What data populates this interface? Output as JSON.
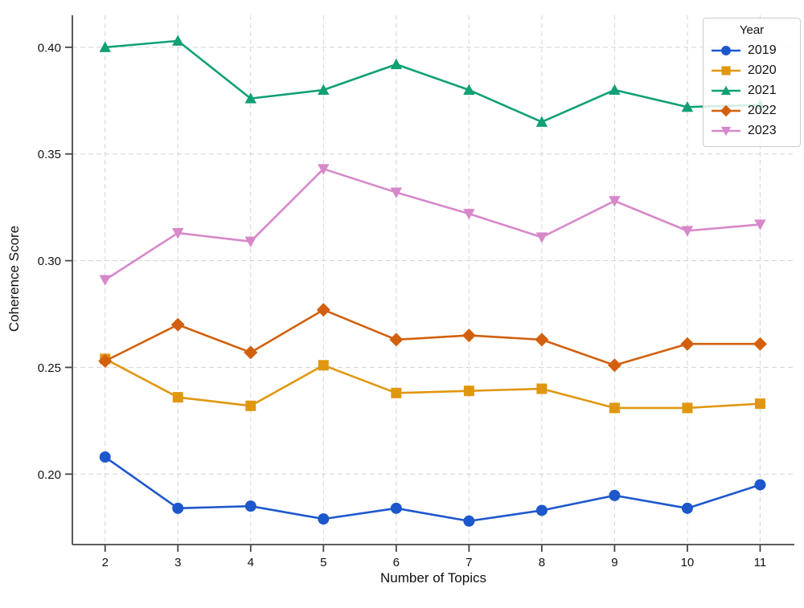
{
  "figure": {
    "background": "#ffffff",
    "grid_color": "#d8d8d8",
    "spine_color": "#454545",
    "text_color": "#111111"
  },
  "chart_data": {
    "type": "line",
    "title": "",
    "xlabel": "Number of Topics",
    "ylabel": "Coherence Score",
    "x": [
      2,
      3,
      4,
      5,
      6,
      7,
      8,
      9,
      10,
      11
    ],
    "xtick_labels": [
      "2",
      "3",
      "4",
      "5",
      "6",
      "7",
      "8",
      "9",
      "10",
      "11"
    ],
    "yticks": [
      {
        "value": 0.2,
        "label": "0.20"
      },
      {
        "value": 0.25,
        "label": "0.25"
      },
      {
        "value": 0.3,
        "label": "0.30"
      },
      {
        "value": 0.35,
        "label": "0.35"
      },
      {
        "value": 0.4,
        "label": "0.40"
      }
    ],
    "xlim": [
      1.55,
      11.47
    ],
    "ylim": [
      0.167,
      0.415
    ],
    "grid": "dashed",
    "legend": {
      "title": "Year",
      "position": "upper right"
    },
    "series": [
      {
        "name": "2019",
        "color": "#1d57cc",
        "marker": "circle",
        "values": [
          0.208,
          0.184,
          0.185,
          0.179,
          0.184,
          0.178,
          0.183,
          0.19,
          0.184,
          0.195
        ]
      },
      {
        "name": "2020",
        "color": "#e0970f",
        "marker": "square",
        "values": [
          0.254,
          0.236,
          0.232,
          0.251,
          0.238,
          0.239,
          0.24,
          0.231,
          0.231,
          0.233
        ]
      },
      {
        "name": "2021",
        "color": "#10a075",
        "marker": "triangle-up",
        "values": [
          0.4,
          0.403,
          0.376,
          0.38,
          0.392,
          0.38,
          0.365,
          0.38,
          0.372,
          0.373
        ]
      },
      {
        "name": "2022",
        "color": "#d2600e",
        "marker": "diamond",
        "values": [
          0.253,
          0.27,
          0.257,
          0.277,
          0.263,
          0.265,
          0.263,
          0.251,
          0.261,
          0.261
        ]
      },
      {
        "name": "2023",
        "color": "#d788c9",
        "marker": "triangle-down",
        "values": [
          0.291,
          0.313,
          0.309,
          0.343,
          0.332,
          0.322,
          0.311,
          0.328,
          0.314,
          0.317
        ]
      }
    ]
  }
}
